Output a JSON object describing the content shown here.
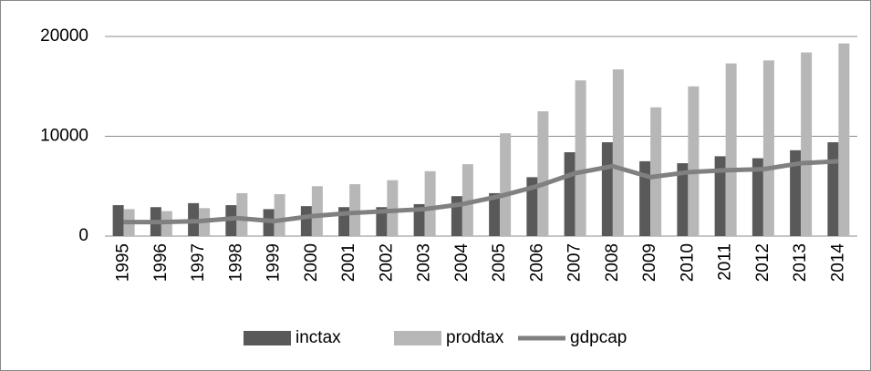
{
  "chart_data": {
    "type": "bar",
    "categories": [
      "1995",
      "1996",
      "1997",
      "1998",
      "1999",
      "2000",
      "2001",
      "2002",
      "2003",
      "2004",
      "2005",
      "2006",
      "2007",
      "2008",
      "2009",
      "2010",
      "2011",
      "2012",
      "2013",
      "2014"
    ],
    "series": [
      {
        "name": "inctax",
        "type": "bar",
        "color": "#595959",
        "values": [
          3100,
          2900,
          3300,
          3100,
          2700,
          3000,
          2900,
          2900,
          3200,
          4000,
          4300,
          5900,
          8400,
          9400,
          7500,
          7300,
          8000,
          7800,
          8600,
          9400
        ]
      },
      {
        "name": "prodtax",
        "type": "bar",
        "color": "#b7b7b7",
        "values": [
          2700,
          2500,
          2800,
          4300,
          4200,
          5000,
          5200,
          5600,
          6500,
          7200,
          10300,
          12500,
          15600,
          16700,
          12900,
          15000,
          17300,
          17600,
          18400,
          19300
        ]
      },
      {
        "name": "gdpcap",
        "type": "line",
        "color": "#808080",
        "values": [
          1400,
          1400,
          1500,
          1800,
          1500,
          2000,
          2300,
          2500,
          2700,
          3200,
          4000,
          5000,
          6300,
          7000,
          5900,
          6400,
          6600,
          6700,
          7300,
          7500
        ]
      }
    ],
    "ylim": [
      0,
      20000
    ],
    "yticks": [
      0,
      10000,
      20000
    ],
    "grid": true,
    "legend": "bottom"
  }
}
